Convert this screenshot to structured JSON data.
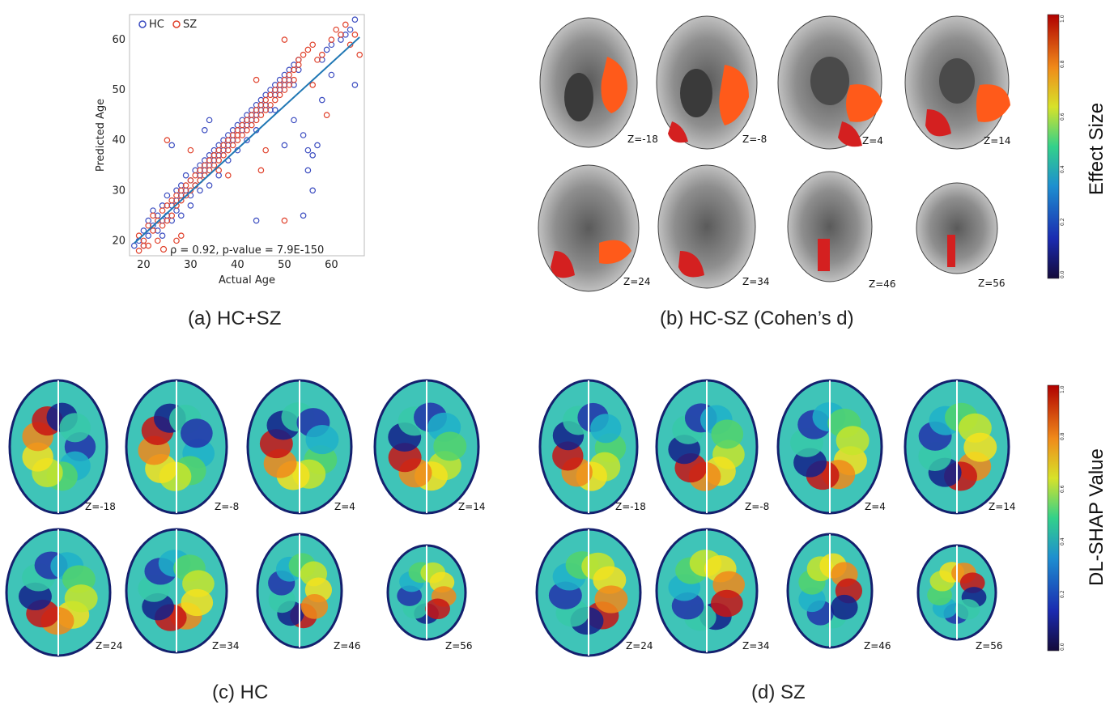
{
  "panels": {
    "a": {
      "caption": "(a) HC+SZ"
    },
    "b": {
      "caption": "(b) HC-SZ (Cohen’s d)",
      "colorbar_label": "Effect Size",
      "colorbar_ticks": [
        "0.0",
        "0.2",
        "0.4",
        "0.6",
        "0.8",
        "1.0"
      ],
      "slices": [
        "Z=-18",
        "Z=-8",
        "Z=4",
        "Z=14",
        "Z=24",
        "Z=34",
        "Z=46",
        "Z=56"
      ]
    },
    "c": {
      "caption": "(c) HC",
      "slices": [
        "Z=-18",
        "Z=-8",
        "Z=4",
        "Z=14",
        "Z=24",
        "Z=34",
        "Z=46",
        "Z=56"
      ]
    },
    "d": {
      "caption": "(d) SZ",
      "colorbar_label": "DL-SHAP Value",
      "colorbar_ticks": [
        "0.0",
        "0.2",
        "0.4",
        "0.6",
        "0.8",
        "1.0"
      ],
      "slices": [
        "Z=-18",
        "Z=-8",
        "Z=4",
        "Z=14",
        "Z=24",
        "Z=34",
        "Z=46",
        "Z=56"
      ]
    }
  },
  "colors": {
    "hc": "#3b4cc0",
    "sz": "#e0402a",
    "fit": "#1f77b4"
  },
  "chart_data": {
    "type": "scatter",
    "xlabel": "Actual Age",
    "ylabel": "Predicted Age",
    "xlim": [
      17,
      67
    ],
    "ylim": [
      17,
      65
    ],
    "xticks": [
      20,
      30,
      40,
      50,
      60
    ],
    "yticks": [
      20,
      30,
      40,
      50,
      60
    ],
    "annotation": "ρ = 0.92, p-value = 7.9E-150",
    "legend_position": "top-left",
    "fit_line": {
      "x": [
        18,
        66
      ],
      "y": [
        19.5,
        60.5
      ]
    },
    "series": [
      {
        "name": "HC",
        "points": [
          [
            18,
            19
          ],
          [
            19,
            20
          ],
          [
            20,
            22
          ],
          [
            20,
            19
          ],
          [
            21,
            24
          ],
          [
            21,
            21
          ],
          [
            22,
            26
          ],
          [
            22,
            23
          ],
          [
            23,
            25
          ],
          [
            23,
            22
          ],
          [
            24,
            27
          ],
          [
            24,
            24
          ],
          [
            24,
            21
          ],
          [
            25,
            29
          ],
          [
            25,
            25
          ],
          [
            26,
            27
          ],
          [
            26,
            24
          ],
          [
            27,
            30
          ],
          [
            27,
            28
          ],
          [
            27,
            26
          ],
          [
            28,
            31
          ],
          [
            28,
            29
          ],
          [
            28,
            25
          ],
          [
            29,
            33
          ],
          [
            29,
            30
          ],
          [
            30,
            32
          ],
          [
            30,
            29
          ],
          [
            30,
            27
          ],
          [
            31,
            34
          ],
          [
            31,
            31
          ],
          [
            32,
            35
          ],
          [
            32,
            33
          ],
          [
            32,
            30
          ],
          [
            33,
            36
          ],
          [
            33,
            34
          ],
          [
            34,
            37
          ],
          [
            34,
            35
          ],
          [
            34,
            31
          ],
          [
            35,
            38
          ],
          [
            35,
            36
          ],
          [
            36,
            39
          ],
          [
            36,
            37
          ],
          [
            36,
            33
          ],
          [
            37,
            40
          ],
          [
            37,
            38
          ],
          [
            38,
            41
          ],
          [
            38,
            39
          ],
          [
            38,
            36
          ],
          [
            39,
            42
          ],
          [
            39,
            40
          ],
          [
            40,
            43
          ],
          [
            40,
            41
          ],
          [
            40,
            38
          ],
          [
            41,
            44
          ],
          [
            41,
            42
          ],
          [
            42,
            45
          ],
          [
            42,
            43
          ],
          [
            42,
            40
          ],
          [
            43,
            46
          ],
          [
            43,
            44
          ],
          [
            44,
            47
          ],
          [
            44,
            45
          ],
          [
            44,
            42
          ],
          [
            45,
            48
          ],
          [
            45,
            46
          ],
          [
            46,
            49
          ],
          [
            46,
            47
          ],
          [
            47,
            50
          ],
          [
            47,
            46
          ],
          [
            48,
            51
          ],
          [
            48,
            49
          ],
          [
            49,
            52
          ],
          [
            49,
            50
          ],
          [
            50,
            53
          ],
          [
            50,
            51
          ],
          [
            51,
            54
          ],
          [
            51,
            52
          ],
          [
            52,
            55
          ],
          [
            52,
            51
          ],
          [
            53,
            56
          ],
          [
            53,
            54
          ],
          [
            54,
            41
          ],
          [
            55,
            38
          ],
          [
            55,
            34
          ],
          [
            56,
            30
          ],
          [
            57,
            39
          ],
          [
            58,
            56
          ],
          [
            58,
            48
          ],
          [
            59,
            58
          ],
          [
            60,
            59
          ],
          [
            60,
            53
          ],
          [
            62,
            60
          ],
          [
            63,
            61
          ],
          [
            64,
            62
          ],
          [
            65,
            64
          ],
          [
            65,
            51
          ],
          [
            34,
            44
          ],
          [
            33,
            42
          ],
          [
            26,
            39
          ],
          [
            44,
            24
          ],
          [
            56,
            37
          ],
          [
            50,
            39
          ],
          [
            48,
            46
          ],
          [
            52,
            44
          ],
          [
            54,
            25
          ]
        ]
      },
      {
        "name": "SZ",
        "points": [
          [
            19,
            18
          ],
          [
            19,
            21
          ],
          [
            20,
            20
          ],
          [
            21,
            23
          ],
          [
            21,
            19
          ],
          [
            22,
            22
          ],
          [
            22,
            25
          ],
          [
            23,
            24
          ],
          [
            23,
            20
          ],
          [
            24,
            26
          ],
          [
            24,
            23
          ],
          [
            25,
            27
          ],
          [
            25,
            24
          ],
          [
            26,
            28
          ],
          [
            26,
            25
          ],
          [
            27,
            29
          ],
          [
            27,
            27
          ],
          [
            28,
            30
          ],
          [
            28,
            28
          ],
          [
            29,
            31
          ],
          [
            29,
            29
          ],
          [
            30,
            32
          ],
          [
            30,
            30
          ],
          [
            31,
            33
          ],
          [
            31,
            31
          ],
          [
            32,
            34
          ],
          [
            32,
            32
          ],
          [
            33,
            35
          ],
          [
            33,
            33
          ],
          [
            34,
            36
          ],
          [
            34,
            34
          ],
          [
            35,
            37
          ],
          [
            35,
            35
          ],
          [
            36,
            38
          ],
          [
            36,
            36
          ],
          [
            37,
            39
          ],
          [
            37,
            37
          ],
          [
            38,
            40
          ],
          [
            38,
            38
          ],
          [
            39,
            41
          ],
          [
            39,
            39
          ],
          [
            40,
            42
          ],
          [
            40,
            40
          ],
          [
            41,
            43
          ],
          [
            41,
            41
          ],
          [
            42,
            44
          ],
          [
            42,
            42
          ],
          [
            43,
            45
          ],
          [
            43,
            43
          ],
          [
            44,
            46
          ],
          [
            44,
            44
          ],
          [
            45,
            47
          ],
          [
            45,
            45
          ],
          [
            46,
            48
          ],
          [
            46,
            46
          ],
          [
            47,
            49
          ],
          [
            47,
            47
          ],
          [
            48,
            50
          ],
          [
            48,
            48
          ],
          [
            49,
            51
          ],
          [
            49,
            49
          ],
          [
            50,
            52
          ],
          [
            50,
            50
          ],
          [
            51,
            53
          ],
          [
            51,
            51
          ],
          [
            52,
            54
          ],
          [
            52,
            52
          ],
          [
            53,
            55
          ],
          [
            53,
            56
          ],
          [
            54,
            57
          ],
          [
            55,
            58
          ],
          [
            56,
            59
          ],
          [
            57,
            56
          ],
          [
            58,
            57
          ],
          [
            60,
            60
          ],
          [
            61,
            62
          ],
          [
            62,
            61
          ],
          [
            63,
            63
          ],
          [
            64,
            59
          ],
          [
            65,
            61
          ],
          [
            66,
            57
          ],
          [
            50,
            24
          ],
          [
            27,
            20
          ],
          [
            28,
            21
          ],
          [
            25,
            40
          ],
          [
            30,
            38
          ],
          [
            36,
            34
          ],
          [
            45,
            34
          ],
          [
            46,
            38
          ],
          [
            40,
            41
          ],
          [
            20,
            19
          ],
          [
            50,
            60
          ],
          [
            56,
            51
          ],
          [
            59,
            45
          ],
          [
            44,
            52
          ],
          [
            38,
            33
          ]
        ]
      }
    ]
  }
}
